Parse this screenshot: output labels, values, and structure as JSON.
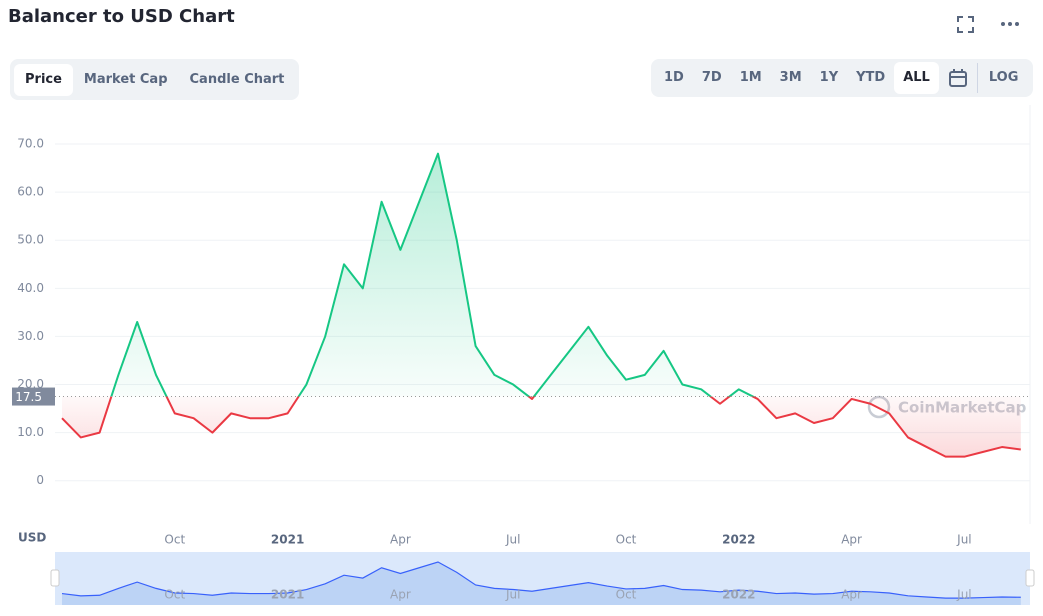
{
  "chart_data": {
    "type": "line",
    "title": "Balancer to USD Chart",
    "y_label": "USD",
    "categories": [
      null,
      null,
      null,
      null,
      null,
      null,
      "Oct",
      null,
      null,
      null,
      null,
      null,
      "2021",
      null,
      null,
      null,
      null,
      null,
      "Apr",
      null,
      null,
      null,
      null,
      null,
      "Jul",
      null,
      null,
      null,
      null,
      null,
      "Oct",
      null,
      null,
      null,
      null,
      null,
      "2022",
      null,
      null,
      null,
      null,
      null,
      "Apr",
      null,
      null,
      null,
      null,
      null,
      "Jul",
      null,
      null,
      null
    ],
    "values": [
      13,
      9,
      10,
      22,
      33,
      22,
      14,
      13,
      10,
      14,
      13,
      13,
      14,
      20,
      30,
      45,
      40,
      58,
      48,
      58,
      68,
      50,
      28,
      22,
      20,
      17,
      22,
      27,
      32,
      26,
      21,
      22,
      27,
      20,
      19,
      16,
      19,
      17,
      13,
      14,
      12,
      13,
      17,
      16,
      14,
      9,
      7,
      5,
      5,
      6,
      7,
      6.5
    ],
    "ylim": [
      -9,
      75
    ],
    "yticks": [
      0,
      {
        "value": 10,
        "label": "10.0"
      },
      {
        "value": 20,
        "label": "20.0"
      },
      {
        "value": 30,
        "label": "30.0"
      },
      {
        "value": 40,
        "label": "40.0"
      },
      {
        "value": 50,
        "label": "50.0"
      },
      {
        "value": 60,
        "label": "60.0"
      },
      {
        "value": 70,
        "label": "70.0"
      }
    ],
    "baseline": 17.5,
    "up_color": "#16c784",
    "down_color": "#ea3943",
    "grid": true,
    "watermark": "CoinMarketCap"
  },
  "ui": {
    "tabs": [
      "Price",
      "Market Cap",
      "Candle Chart"
    ],
    "ranges": [
      "1D",
      "7D",
      "1M",
      "3M",
      "1Y",
      "YTD",
      "ALL"
    ],
    "log": "LOG"
  }
}
